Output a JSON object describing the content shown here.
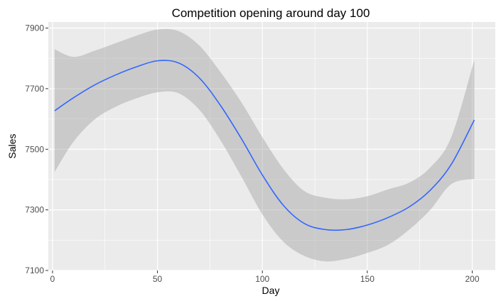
{
  "chart_data": {
    "type": "line",
    "title": "Competition opening around day 100",
    "xlabel": "Day",
    "ylabel": "Sales",
    "xlim": [
      -2,
      211
    ],
    "ylim": [
      7100,
      7920
    ],
    "x_ticks": [
      0,
      50,
      100,
      150,
      200
    ],
    "y_ticks": [
      7100,
      7300,
      7500,
      7700,
      7900
    ],
    "grid": true,
    "legend": "none",
    "colors": {
      "panel": "#ebebeb",
      "grid_major": "#ffffff",
      "line": "#3366ff",
      "band": "#999999",
      "tick_label": "#4d4d4d",
      "tick_mark": "#333333"
    },
    "series": [
      {
        "x": [
          1,
          10,
          20,
          30,
          40,
          50,
          60,
          70,
          80,
          90,
          100,
          110,
          120,
          130,
          140,
          150,
          160,
          170,
          180,
          190,
          201
        ],
        "y": [
          7627,
          7670,
          7712,
          7745,
          7772,
          7792,
          7785,
          7735,
          7645,
          7535,
          7415,
          7315,
          7255,
          7235,
          7235,
          7250,
          7275,
          7310,
          7365,
          7450,
          7597
        ],
        "lower": [
          7425,
          7525,
          7598,
          7640,
          7668,
          7688,
          7685,
          7630,
          7530,
          7410,
          7285,
          7195,
          7148,
          7130,
          7138,
          7158,
          7185,
          7235,
          7300,
          7385,
          7402
        ],
        "upper": [
          7830,
          7805,
          7825,
          7850,
          7875,
          7895,
          7890,
          7842,
          7755,
          7655,
          7540,
          7435,
          7362,
          7340,
          7335,
          7345,
          7368,
          7390,
          7440,
          7540,
          7795
        ]
      }
    ]
  }
}
